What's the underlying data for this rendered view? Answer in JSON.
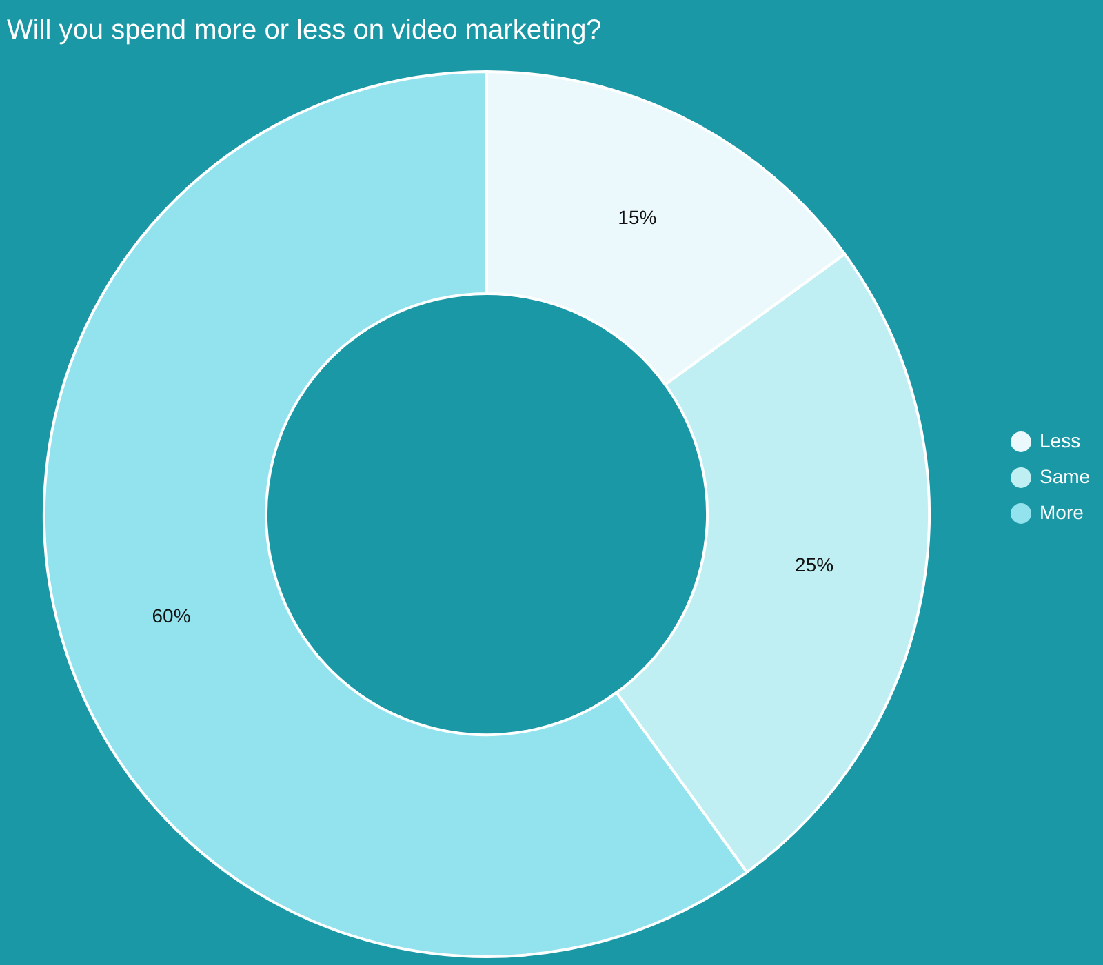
{
  "chart_data": {
    "type": "donut",
    "title": "Will you spend more or less on video marketing?",
    "categories": [
      "Less",
      "Same",
      "More"
    ],
    "values": [
      15,
      25,
      60
    ],
    "colors": [
      "#ebf9fd",
      "#c0eff3",
      "#92e3ed"
    ],
    "value_labels": [
      "15%",
      "25%",
      "60%"
    ],
    "legend": "right"
  }
}
